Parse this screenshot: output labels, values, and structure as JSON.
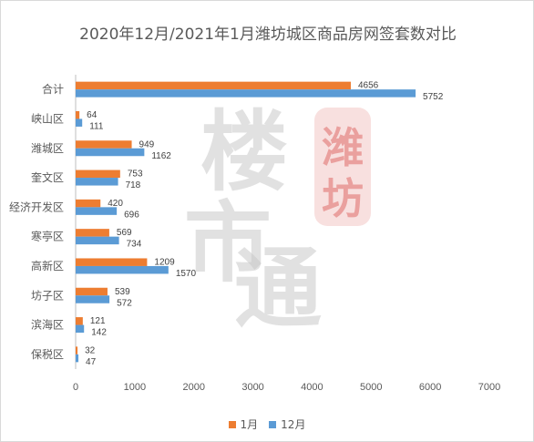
{
  "chart_data": {
    "type": "bar",
    "orientation": "horizontal",
    "title": "2020年12月/2021年1月潍坊城区商品房网签套数对比",
    "categories": [
      "合计",
      "峡山区",
      "潍城区",
      "奎文区",
      "经济开发区",
      "寒亭区",
      "高新区",
      "坊子区",
      "滨海区",
      "保税区"
    ],
    "series": [
      {
        "name": "1月",
        "color": "#ed7d31",
        "values": [
          4656,
          64,
          949,
          753,
          420,
          569,
          1209,
          539,
          121,
          32
        ]
      },
      {
        "name": "12月",
        "color": "#5b9bd5",
        "values": [
          5752,
          111,
          1162,
          718,
          696,
          734,
          1570,
          572,
          142,
          47
        ]
      }
    ],
    "xlim": [
      0,
      7000
    ],
    "xticks": [
      0,
      1000,
      2000,
      3000,
      4000,
      5000,
      6000,
      7000
    ],
    "grid": false,
    "legend_position": "bottom"
  },
  "watermark": {
    "main_chars": [
      "楼",
      "市",
      "通"
    ],
    "seal_chars": [
      "潍",
      "坊"
    ],
    "color": "#c8c8c8",
    "seal_color": "#d9534f"
  }
}
